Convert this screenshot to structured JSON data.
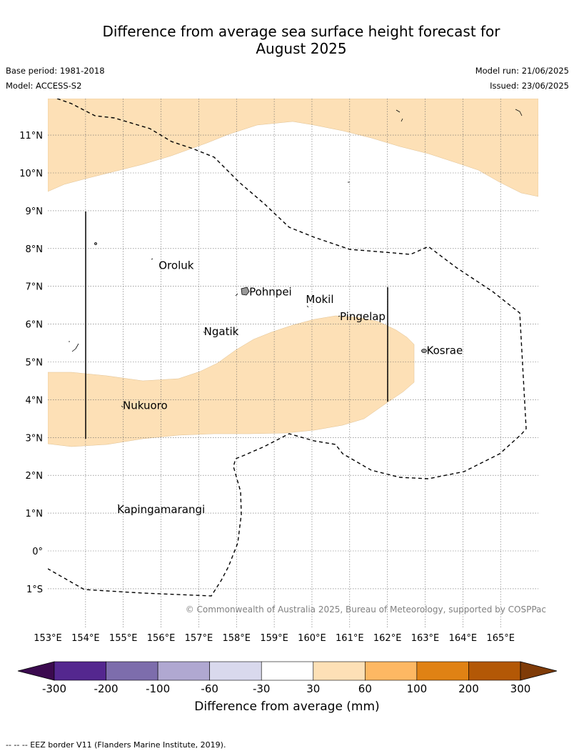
{
  "title_line1": "Difference from average sea surface height forecast for",
  "title_line2": "August 2025",
  "base_period": "Base period: 1981-2018",
  "model": "Model: ACCESS-S2",
  "model_run": "Model run: 21/06/2025",
  "issued": "Issued: 23/06/2025",
  "copyright": "© Commonwealth of Australia 2025, Bureau of Meteorology, supported by COSPPac",
  "lat_labels": [
    "11°N",
    "10°N",
    "9°N",
    "8°N",
    "7°N",
    "6°N",
    "5°N",
    "4°N",
    "3°N",
    "2°N",
    "1°N",
    "0°",
    "1°S"
  ],
  "lon_labels": [
    "153°E",
    "154°E",
    "155°E",
    "156°E",
    "157°E",
    "158°E",
    "159°E",
    "160°E",
    "161°E",
    "162°E",
    "163°E",
    "164°E",
    "165°E"
  ],
  "places": [
    {
      "name": "Oroluk",
      "lon": 155.9,
      "lat": 7.55
    },
    {
      "name": "Pohnpei",
      "lon": 158.3,
      "lat": 6.85
    },
    {
      "name": "Mokil",
      "lon": 159.8,
      "lat": 6.65
    },
    {
      "name": "Pingelap",
      "lon": 160.7,
      "lat": 6.2
    },
    {
      "name": "Ngatik",
      "lon": 157.1,
      "lat": 5.8
    },
    {
      "name": "Kosrae",
      "lon": 163.0,
      "lat": 5.3
    },
    {
      "name": "Nukuoro",
      "lon": 154.95,
      "lat": 3.85
    },
    {
      "name": "Kapingamarangi",
      "lon": 154.8,
      "lat": 1.1
    }
  ],
  "colorbar": {
    "title": "Difference from average (mm)",
    "tick_labels": [
      "-300",
      "-200",
      "-100",
      "-60",
      "-30",
      "30",
      "60",
      "100",
      "200",
      "300"
    ],
    "colors": [
      "#3b0a4f",
      "#54278f",
      "#7d6dac",
      "#b0a8d1",
      "#d9d9ed",
      "#ffffff",
      "#fde0b6",
      "#fdb863",
      "#e08214",
      "#b35806",
      "#7f3b08"
    ]
  },
  "legend_note": "--  --  -- EEZ border V11 (Flanders Marine Institute, 2019)."
}
